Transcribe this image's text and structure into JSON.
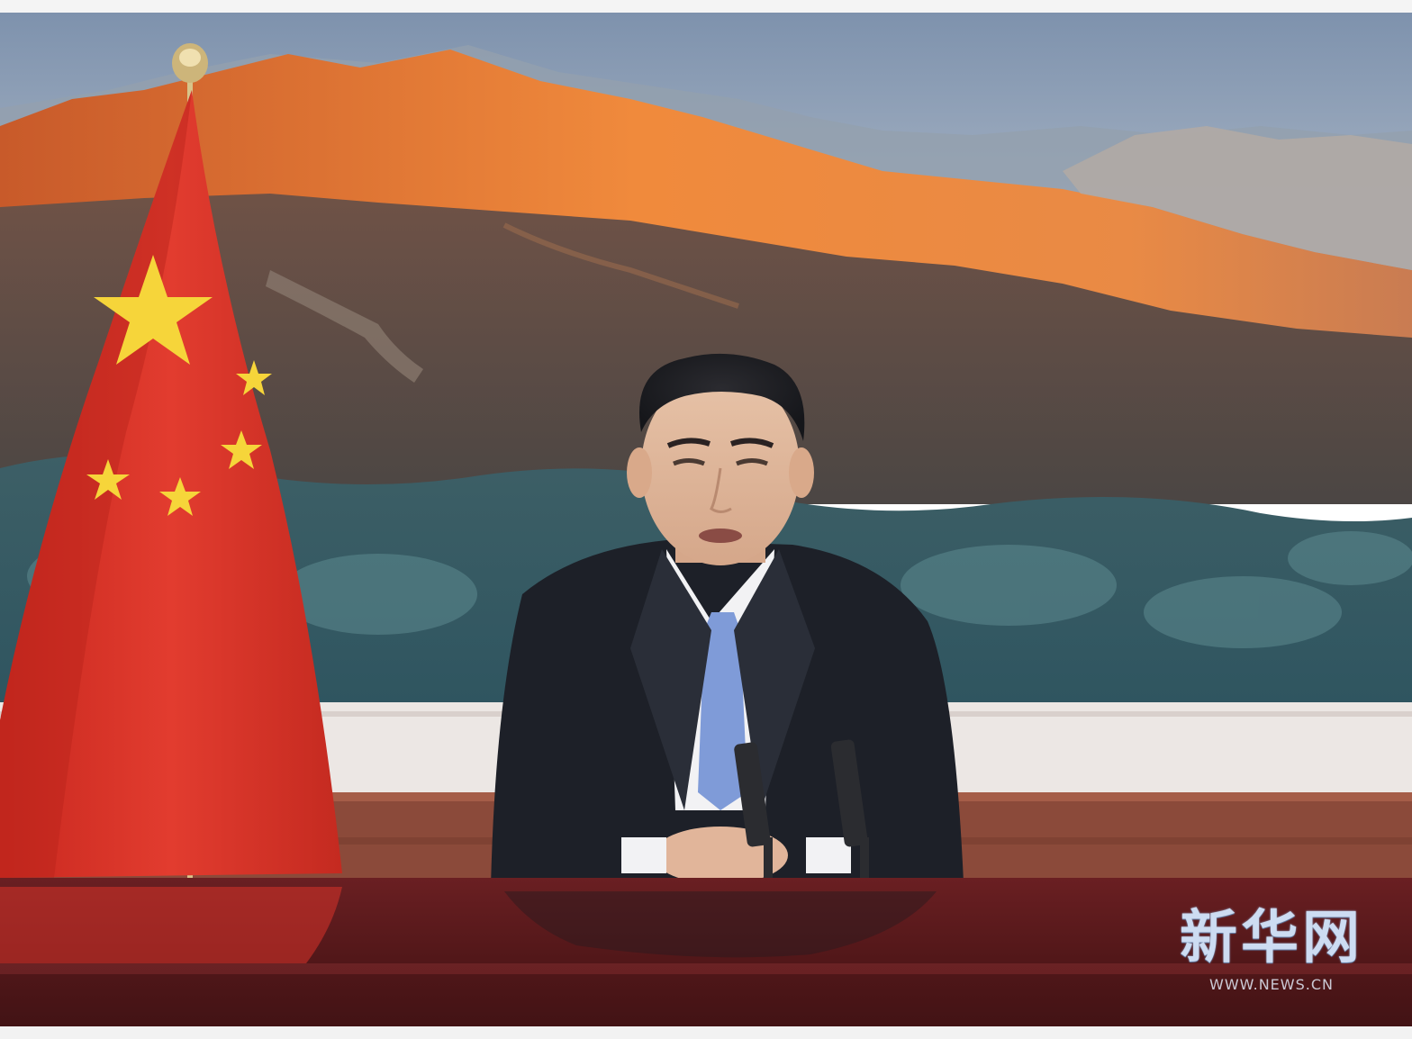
{
  "photo": {
    "subject": "speaker-at-desk",
    "colors": {
      "sky": "#8fa2b8",
      "mountain_glow": "#e07a36",
      "mountain_dark": "#5b4a48",
      "forest": "#3f6a72",
      "flag_red": "#d9332a",
      "flag_star": "#f6d53a",
      "desk": "#5a1a1c",
      "suit": "#1d2028",
      "tie": "#7f9bd8"
    }
  },
  "watermark": {
    "brand": "新华网",
    "url": "WWW.NEWS.CN"
  }
}
